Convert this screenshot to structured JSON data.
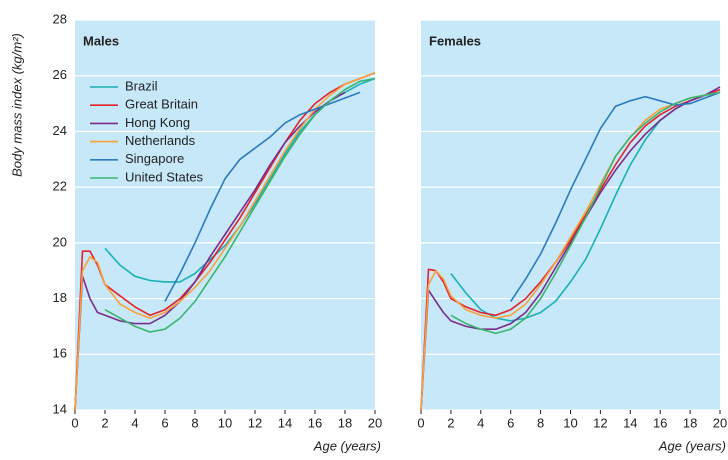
{
  "chart_data": [
    {
      "type": "line",
      "title": "Males",
      "xlabel": "Age (years)",
      "ylabel": "Body mass index (kg/m²)",
      "x": [
        0,
        0.5,
        1,
        1.5,
        2,
        3,
        4,
        5,
        6,
        7,
        8,
        9,
        10,
        11,
        12,
        13,
        14,
        15,
        16,
        17,
        18,
        19,
        20
      ],
      "xlim": [
        0,
        20
      ],
      "xticks": [
        0,
        2,
        4,
        6,
        8,
        10,
        12,
        14,
        16,
        18,
        20
      ],
      "ylim": [
        14,
        28
      ],
      "yticks": [
        14,
        16,
        18,
        20,
        22,
        24,
        26,
        28
      ],
      "grid": true,
      "series": [
        {
          "name": "Brazil",
          "color": "#1ab0b8",
          "values": [
            null,
            null,
            null,
            null,
            19.8,
            19.2,
            18.8,
            18.65,
            18.6,
            18.6,
            18.9,
            19.4,
            19.9,
            20.6,
            21.4,
            22.3,
            23.2,
            24.0,
            24.6,
            25.1,
            25.4,
            25.7,
            25.9
          ]
        },
        {
          "name": "Great Britain",
          "color": "#e3222b",
          "values": [
            14,
            19.7,
            19.7,
            19.2,
            18.5,
            18.1,
            17.7,
            17.4,
            17.6,
            18.0,
            18.6,
            19.3,
            20.1,
            20.9,
            21.8,
            22.7,
            23.6,
            24.4,
            25.0,
            25.4,
            25.7,
            25.9,
            26.1
          ]
        },
        {
          "name": "Hong Kong",
          "color": "#7b2d8e",
          "values": [
            14,
            18.8,
            18.0,
            17.5,
            17.4,
            17.2,
            17.1,
            17.1,
            17.4,
            17.9,
            18.6,
            19.5,
            20.3,
            21.1,
            21.9,
            22.8,
            23.6,
            24.2,
            24.7,
            25.1,
            25.4,
            null,
            null
          ]
        },
        {
          "name": "Netherlands",
          "color": "#f9a13a",
          "values": [
            14,
            19.0,
            19.5,
            19.3,
            18.5,
            17.8,
            17.5,
            17.3,
            17.5,
            17.9,
            18.4,
            19.0,
            19.8,
            20.6,
            21.5,
            22.4,
            23.3,
            24.1,
            24.8,
            25.3,
            25.7,
            25.9,
            26.1
          ]
        },
        {
          "name": "Singapore",
          "color": "#2a7bbf",
          "values": [
            null,
            null,
            null,
            null,
            null,
            null,
            null,
            null,
            17.9,
            18.9,
            20.0,
            21.2,
            22.3,
            23.0,
            23.4,
            23.8,
            24.3,
            24.6,
            24.8,
            25.0,
            25.2,
            25.4,
            null
          ]
        },
        {
          "name": "United States",
          "color": "#3cb46e",
          "values": [
            null,
            null,
            null,
            null,
            17.6,
            17.3,
            17.0,
            16.8,
            16.9,
            17.3,
            17.9,
            18.7,
            19.5,
            20.4,
            21.3,
            22.2,
            23.1,
            23.9,
            24.6,
            25.1,
            25.5,
            25.8,
            25.9
          ]
        }
      ]
    },
    {
      "type": "line",
      "title": "Females",
      "xlabel": "Age (years)",
      "x": [
        0,
        0.5,
        1,
        1.5,
        2,
        3,
        4,
        5,
        6,
        7,
        8,
        9,
        10,
        11,
        12,
        13,
        14,
        15,
        16,
        17,
        18,
        19,
        20
      ],
      "xlim": [
        0,
        20
      ],
      "xticks": [
        0,
        2,
        4,
        6,
        8,
        10,
        12,
        14,
        16,
        18,
        20
      ],
      "ylim": [
        14,
        28
      ],
      "yticks": [
        14,
        16,
        18,
        20,
        22,
        24,
        26,
        28
      ],
      "grid": true,
      "series": [
        {
          "color": "#1ab0b8",
          "values": [
            null,
            null,
            null,
            null,
            18.9,
            18.2,
            17.6,
            17.3,
            17.2,
            17.3,
            17.5,
            17.9,
            18.6,
            19.4,
            20.5,
            21.7,
            22.8,
            23.7,
            24.4,
            24.8,
            25.1,
            25.3,
            25.4
          ]
        },
        {
          "color": "#e3222b",
          "values": [
            14,
            19.05,
            19.0,
            18.6,
            18.0,
            17.7,
            17.5,
            17.4,
            17.6,
            18.0,
            18.6,
            19.3,
            20.1,
            21.0,
            21.9,
            22.8,
            23.6,
            24.2,
            24.6,
            24.9,
            25.1,
            25.3,
            25.5
          ]
        },
        {
          "color": "#7b2d8e",
          "values": [
            14,
            18.3,
            17.9,
            17.5,
            17.2,
            17.0,
            16.9,
            16.9,
            17.1,
            17.5,
            18.2,
            19.1,
            20.0,
            20.9,
            21.8,
            22.6,
            23.3,
            23.9,
            24.4,
            24.8,
            25.1,
            25.3,
            25.6
          ]
        },
        {
          "color": "#f9a13a",
          "values": [
            14,
            18.5,
            19.0,
            18.7,
            18.1,
            17.6,
            17.4,
            17.3,
            17.4,
            17.8,
            18.5,
            19.3,
            20.2,
            21.1,
            22.1,
            23.1,
            23.8,
            24.4,
            24.8,
            25.0,
            25.2,
            25.3,
            25.4
          ]
        },
        {
          "color": "#2a7bbf",
          "values": [
            null,
            null,
            null,
            null,
            null,
            null,
            null,
            null,
            17.9,
            18.7,
            19.6,
            20.7,
            21.9,
            23.0,
            24.1,
            24.9,
            25.1,
            25.25,
            25.1,
            24.95,
            25.0,
            25.2,
            25.4
          ]
        },
        {
          "color": "#3cb46e",
          "values": [
            null,
            null,
            null,
            null,
            17.4,
            17.1,
            16.9,
            16.75,
            16.9,
            17.3,
            18.0,
            18.9,
            19.9,
            20.9,
            22.0,
            23.1,
            23.8,
            24.3,
            24.7,
            25.0,
            25.2,
            25.3,
            25.4
          ]
        }
      ]
    }
  ]
}
